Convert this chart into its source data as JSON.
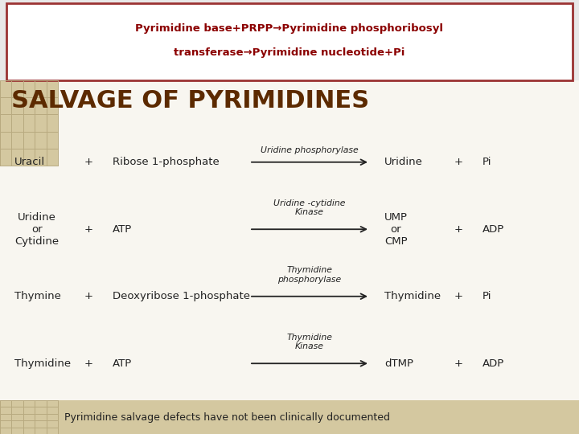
{
  "fig_bg": "#e8e8e8",
  "header_bg": "#ffffff",
  "header_border": "#9b3333",
  "header_text_color": "#8b0000",
  "header_line1": "Pyrimidine base+PRPP→Pyrimidine phosphoribosyl",
  "header_line2": "transferase→Pyrimidine nucleotide+Pi",
  "body_bg": "#f8f6f0",
  "title_text": "SALVAGE OF PYRIMIDINES",
  "title_color": "#5c2a00",
  "corner_bg": "#d4c8a0",
  "corner_line": "#b8aa80",
  "footer_bg": "#d4c8a0",
  "footer_text": "Pyrimidine salvage defects have not been clinically documented",
  "footer_text_color": "#222222",
  "text_color": "#222222",
  "arrow_color": "#222222",
  "rows": [
    {
      "left": "Uracil",
      "plus1": "+",
      "mid": "Ribose 1-phosphate",
      "enzyme": "Uridine phosphorylase",
      "enzyme_lines": 1,
      "right1": "Uridine",
      "plus2": "+",
      "right2": "Pi"
    },
    {
      "left": "Uridine\nor\nCytidine",
      "plus1": "+",
      "mid": "ATP",
      "enzyme": "Uridine -cytidine\nKinase",
      "enzyme_lines": 2,
      "right1": "UMP\nor\nCMP",
      "plus2": "+",
      "right2": "ADP"
    },
    {
      "left": "Thymine",
      "plus1": "+",
      "mid": "Deoxyribose 1-phosphate",
      "enzyme": "Thymidine\nphosphorylase",
      "enzyme_lines": 2,
      "right1": "Thymidine",
      "plus2": "+",
      "right2": "Pi"
    },
    {
      "left": "Thymidine",
      "plus1": "+",
      "mid": "ATP",
      "enzyme": "Thymidine\nKinase",
      "enzyme_lines": 2,
      "right1": "dTMP",
      "plus2": "+",
      "right2": "ADP"
    }
  ]
}
